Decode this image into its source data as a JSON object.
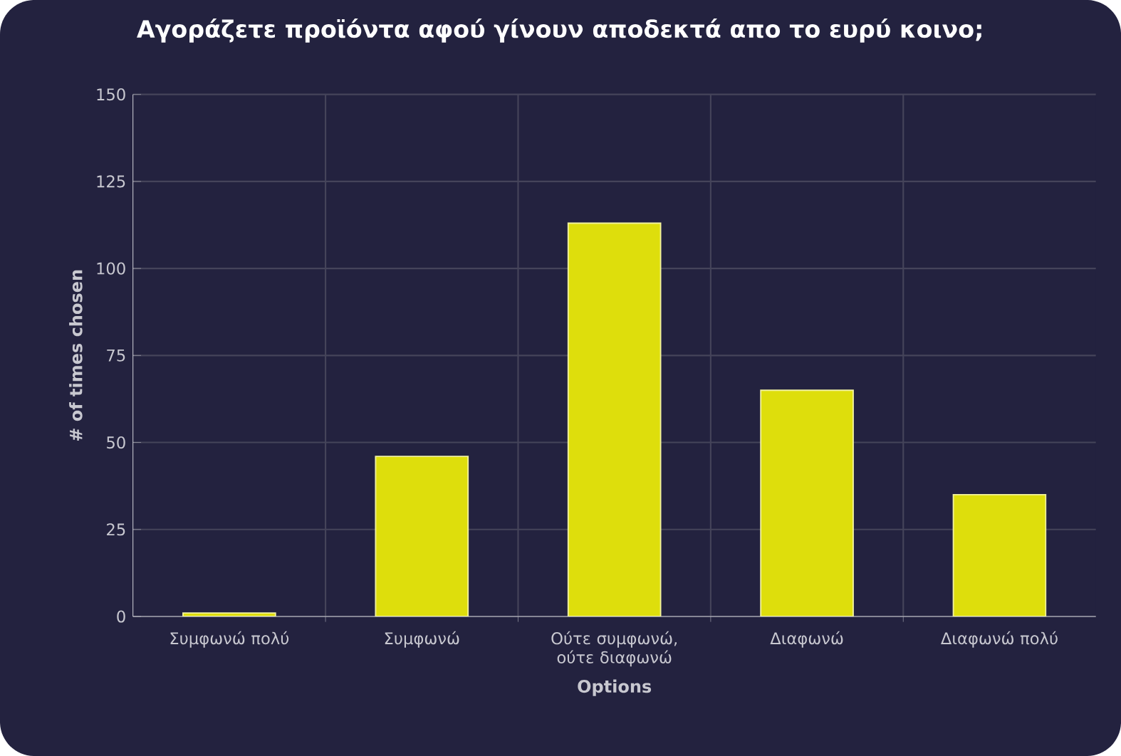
{
  "chart_data": {
    "type": "bar",
    "title": "Αγοράζετε προϊόντα αφού γίνουν αποδεκτά απο το ευρύ κοινο;",
    "xlabel": "Options",
    "ylabel": "# of times chosen",
    "categories": [
      "Συμφωνώ πολύ",
      "Συμφωνώ",
      "Ούτε συμφωνώ, ούτε διαφωνώ",
      "Διαφωνώ",
      "Διαφωνώ πολύ"
    ],
    "values": [
      1,
      46,
      113,
      65,
      35
    ],
    "color": "#dede0c",
    "ylim": [
      0,
      150
    ],
    "yticks": [
      0,
      25,
      50,
      75,
      100,
      125,
      150
    ],
    "grid": true
  }
}
